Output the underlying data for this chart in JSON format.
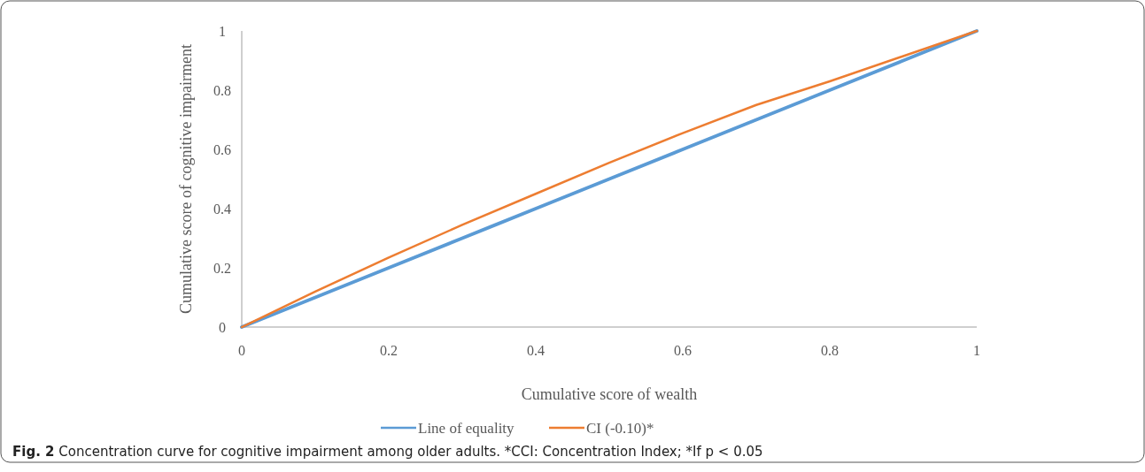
{
  "chart_data": {
    "type": "line",
    "xlabel": "Cumulative  score of wealth",
    "ylabel": "Cumulative  score of cognitive impairment",
    "x": [
      0,
      0.1,
      0.2,
      0.3,
      0.4,
      0.5,
      0.6,
      0.7,
      0.8,
      0.9,
      1
    ],
    "series": [
      {
        "name": "Line of equality",
        "color": "#5b9bd5",
        "values": [
          0,
          0.1,
          0.2,
          0.3,
          0.4,
          0.5,
          0.6,
          0.7,
          0.8,
          0.9,
          1
        ]
      },
      {
        "name": "CI (-0.10)*",
        "color": "#ed7d31",
        "values": [
          0,
          0.12,
          0.235,
          0.345,
          0.45,
          0.555,
          0.655,
          0.75,
          0.83,
          0.915,
          1
        ]
      }
    ],
    "xlim": [
      0,
      1
    ],
    "xticks": [
      0,
      0.2,
      0.4,
      0.6,
      0.8,
      1
    ],
    "ylim": [
      0,
      1
    ],
    "yticks": [
      0,
      0.2,
      0.4,
      0.6,
      0.8,
      1
    ],
    "grid": false,
    "legend": "bottom",
    "marker": "none",
    "line_style": "solid",
    "annotations": [
      "Fig. 2  Concentration curve for cognitive impairment among older adults. *CCI: Concentration Index; *If p < 0.05"
    ]
  }
}
